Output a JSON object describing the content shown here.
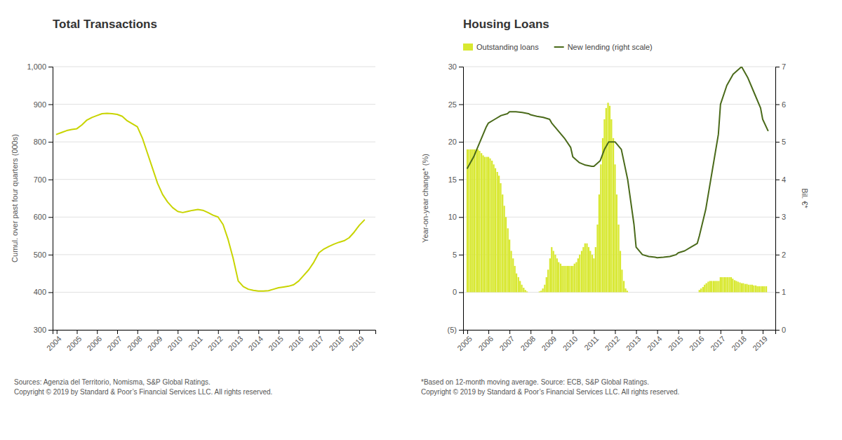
{
  "chart_data": [
    {
      "type": "line",
      "title": "Total Transactions",
      "y_label": "Cumul. over past four quarters (000s)",
      "annotations": [
        "Sources: Agenzia del Territorio, Nomisma, S&P Global Ratings.",
        "Copyright © 2019 by Standard & Poor’s Financial Services LLC. All rights reserved."
      ],
      "color": "#c8d400",
      "grid": true,
      "x": [
        2004.0,
        2004.25,
        2004.5,
        2004.75,
        2005.0,
        2005.25,
        2005.5,
        2005.75,
        2006.0,
        2006.25,
        2006.5,
        2006.75,
        2007.0,
        2007.25,
        2007.5,
        2007.75,
        2008.0,
        2008.25,
        2008.5,
        2008.75,
        2009.0,
        2009.25,
        2009.5,
        2009.75,
        2010.0,
        2010.25,
        2010.5,
        2010.75,
        2011.0,
        2011.25,
        2011.5,
        2011.75,
        2012.0,
        2012.25,
        2012.5,
        2012.75,
        2013.0,
        2013.25,
        2013.5,
        2013.75,
        2014.0,
        2014.25,
        2014.5,
        2014.75,
        2015.0,
        2015.25,
        2015.5,
        2015.75,
        2016.0,
        2016.25,
        2016.5,
        2016.75,
        2017.0,
        2017.25,
        2017.5,
        2017.75,
        2018.0,
        2018.25,
        2018.5,
        2018.75,
        2019.0,
        2019.25
      ],
      "values": [
        820,
        825,
        830,
        833,
        835,
        845,
        858,
        865,
        870,
        875,
        876,
        875,
        873,
        868,
        856,
        848,
        840,
        810,
        770,
        730,
        690,
        660,
        640,
        625,
        615,
        612,
        615,
        618,
        620,
        618,
        612,
        605,
        600,
        580,
        540,
        490,
        430,
        415,
        408,
        405,
        403,
        403,
        404,
        408,
        412,
        414,
        416,
        420,
        430,
        445,
        460,
        480,
        505,
        515,
        522,
        528,
        533,
        537,
        545,
        560,
        578,
        592
      ],
      "xlim": [
        2003.8,
        2019.8
      ],
      "xticks": [
        2004,
        2005,
        2006,
        2007,
        2008,
        2009,
        2010,
        2011,
        2012,
        2013,
        2014,
        2015,
        2016,
        2017,
        2018,
        2019
      ],
      "ylim": [
        300,
        1000
      ],
      "yticks": [
        300,
        400,
        500,
        600,
        700,
        800,
        900,
        {
          "value": 1000,
          "label": "1,000"
        }
      ]
    },
    {
      "type": "bar",
      "title": "Housing Loans",
      "y_label": "Year-on-year change* (%)",
      "y2_label": "Bil. €*",
      "annotations": [
        "*Based on 12-month moving average. Source: ECB, S&P Global Ratings.",
        "Copyright © 2019 by Standard & Poor’s Financial Services LLC. All rights reserved."
      ],
      "grid": true,
      "legend": "upper-left",
      "series": [
        {
          "name": "Outstanding loans",
          "color": "#d8e830",
          "x": [
            2005.0,
            2005.08,
            2005.17,
            2005.25,
            2005.33,
            2005.42,
            2005.5,
            2005.58,
            2005.67,
            2005.75,
            2005.83,
            2005.92,
            2006.0,
            2006.08,
            2006.17,
            2006.25,
            2006.33,
            2006.42,
            2006.5,
            2006.58,
            2006.67,
            2006.75,
            2006.83,
            2006.92,
            2007.0,
            2007.08,
            2007.17,
            2007.25,
            2007.33,
            2007.42,
            2007.5,
            2007.58,
            2007.67,
            2007.75,
            2007.83,
            2007.92,
            2008.0,
            2008.08,
            2008.17,
            2008.25,
            2008.33,
            2008.42,
            2008.5,
            2008.58,
            2008.67,
            2008.75,
            2008.83,
            2008.92,
            2009.0,
            2009.08,
            2009.17,
            2009.25,
            2009.33,
            2009.42,
            2009.5,
            2009.58,
            2009.67,
            2009.75,
            2009.83,
            2009.92,
            2010.0,
            2010.08,
            2010.17,
            2010.25,
            2010.33,
            2010.42,
            2010.5,
            2010.58,
            2010.67,
            2010.75,
            2010.83,
            2010.92,
            2011.0,
            2011.08,
            2011.17,
            2011.25,
            2011.33,
            2011.42,
            2011.5,
            2011.58,
            2011.67,
            2011.75,
            2011.83,
            2011.92,
            2012.0,
            2012.08,
            2012.17,
            2012.25,
            2012.33,
            2012.42,
            2012.5,
            2012.58,
            2012.67,
            2012.75,
            2012.83,
            2012.92,
            2013.0,
            2013.08,
            2013.17,
            2013.25,
            2013.33,
            2013.42,
            2013.5,
            2013.58,
            2013.67,
            2013.75,
            2013.83,
            2013.92,
            2014.0,
            2014.08,
            2014.17,
            2014.25,
            2014.33,
            2014.42,
            2014.5,
            2014.58,
            2014.67,
            2014.75,
            2014.83,
            2014.92,
            2015.0,
            2015.08,
            2015.17,
            2015.25,
            2015.33,
            2015.42,
            2015.5,
            2015.58,
            2015.67,
            2015.75,
            2015.83,
            2015.92,
            2016.0,
            2016.08,
            2016.17,
            2016.25,
            2016.33,
            2016.42,
            2016.5,
            2016.58,
            2016.67,
            2016.75,
            2016.83,
            2016.92,
            2017.0,
            2017.08,
            2017.17,
            2017.25,
            2017.33,
            2017.42,
            2017.5,
            2017.58,
            2017.67,
            2017.75,
            2017.83,
            2017.92,
            2018.0,
            2018.08,
            2018.17,
            2018.25,
            2018.33,
            2018.42,
            2018.5,
            2018.58,
            2018.67,
            2018.75,
            2018.83,
            2018.92,
            2019.0,
            2019.08,
            2019.17
          ],
          "values": [
            19.0,
            19.0,
            19.0,
            19.0,
            19.0,
            19.0,
            19.0,
            18.8,
            18.5,
            18.2,
            18.0,
            18.0,
            18.0,
            17.8,
            17.5,
            17.0,
            16.5,
            16.0,
            15.5,
            14.5,
            13.0,
            11.5,
            10.0,
            8.5,
            7.0,
            5.5,
            4.5,
            3.5,
            2.5,
            2.0,
            1.5,
            1.0,
            0.6,
            0.3,
            0.1,
            0.0,
            0.0,
            0.0,
            0.0,
            0.0,
            0.0,
            0.1,
            0.2,
            0.5,
            1.0,
            2.0,
            3.0,
            4.5,
            6.0,
            5.5,
            5.0,
            4.5,
            4.0,
            3.8,
            3.5,
            3.5,
            3.5,
            3.5,
            3.5,
            3.5,
            3.5,
            3.8,
            4.0,
            4.5,
            5.0,
            5.5,
            6.0,
            6.5,
            6.5,
            6.0,
            5.5,
            5.0,
            4.5,
            6.0,
            9.0,
            13.0,
            17.0,
            20.5,
            23.0,
            24.5,
            25.2,
            24.8,
            23.0,
            20.5,
            17.0,
            13.0,
            9.0,
            5.5,
            3.0,
            1.5,
            0.5,
            0.2,
            0.0,
            0.0,
            0.0,
            0.0,
            0.0,
            0.0,
            0.0,
            0.0,
            0.0,
            0.0,
            0.0,
            0.0,
            0.0,
            0.0,
            0.0,
            0.0,
            0.0,
            0.0,
            0.0,
            0.0,
            0.0,
            0.0,
            0.0,
            0.0,
            0.0,
            0.0,
            0.0,
            0.0,
            0.0,
            0.0,
            0.0,
            0.0,
            0.0,
            0.0,
            0.0,
            0.0,
            0.0,
            0.0,
            0.0,
            0.0,
            0.3,
            0.5,
            0.7,
            1.0,
            1.2,
            1.4,
            1.5,
            1.5,
            1.5,
            1.5,
            1.5,
            1.5,
            2.0,
            2.0,
            2.0,
            2.0,
            2.0,
            2.0,
            2.0,
            1.8,
            1.6,
            1.5,
            1.4,
            1.3,
            1.2,
            1.2,
            1.1,
            1.1,
            1.0,
            1.0,
            1.0,
            0.9,
            0.9,
            0.8,
            0.8,
            0.8,
            0.8,
            0.8,
            0.8
          ]
        },
        {
          "name": "New lending (right scale)",
          "color": "#4a6a1a",
          "type": "line",
          "axis": "y2",
          "x": [
            2005.0,
            2005.3,
            2005.6,
            2005.9,
            2006.0,
            2006.3,
            2006.6,
            2006.9,
            2007.0,
            2007.3,
            2007.6,
            2007.9,
            2008.0,
            2008.3,
            2008.6,
            2008.9,
            2009.0,
            2009.3,
            2009.6,
            2009.9,
            2010.0,
            2010.3,
            2010.6,
            2010.9,
            2011.0,
            2011.3,
            2011.5,
            2011.7,
            2012.0,
            2012.3,
            2012.6,
            2012.9,
            2013.0,
            2013.3,
            2013.6,
            2013.9,
            2014.0,
            2014.3,
            2014.6,
            2014.9,
            2015.0,
            2015.3,
            2015.6,
            2015.9,
            2016.0,
            2016.3,
            2016.6,
            2016.9,
            2017.0,
            2017.3,
            2017.6,
            2017.9,
            2018.0,
            2018.3,
            2018.6,
            2018.9,
            2019.0,
            2019.25
          ],
          "values": [
            4.3,
            4.6,
            5.0,
            5.4,
            5.5,
            5.6,
            5.7,
            5.75,
            5.8,
            5.8,
            5.78,
            5.75,
            5.72,
            5.68,
            5.65,
            5.6,
            5.5,
            5.3,
            5.1,
            4.85,
            4.6,
            4.45,
            4.38,
            4.35,
            4.35,
            4.5,
            4.8,
            5.0,
            5.0,
            4.8,
            4.0,
            2.8,
            2.2,
            2.0,
            1.95,
            1.93,
            1.92,
            1.93,
            1.95,
            2.0,
            2.05,
            2.1,
            2.2,
            2.3,
            2.5,
            3.2,
            4.2,
            5.2,
            6.0,
            6.5,
            6.8,
            6.95,
            7.0,
            6.7,
            6.3,
            5.9,
            5.6,
            5.3
          ]
        }
      ],
      "xlim": [
        2004.8,
        2019.6
      ],
      "xticks": [
        2005,
        2006,
        2007,
        2008,
        2009,
        2010,
        2011,
        2012,
        2013,
        2014,
        2015,
        2016,
        2017,
        2018,
        2019
      ],
      "ylim": [
        -5,
        30
      ],
      "yticks": [
        {
          "value": -5,
          "label": "(5)"
        },
        0,
        5,
        10,
        15,
        20,
        25,
        30
      ],
      "y2lim": [
        0,
        7
      ],
      "y2ticks": [
        0,
        1,
        2,
        3,
        4,
        5,
        6,
        7
      ]
    }
  ]
}
